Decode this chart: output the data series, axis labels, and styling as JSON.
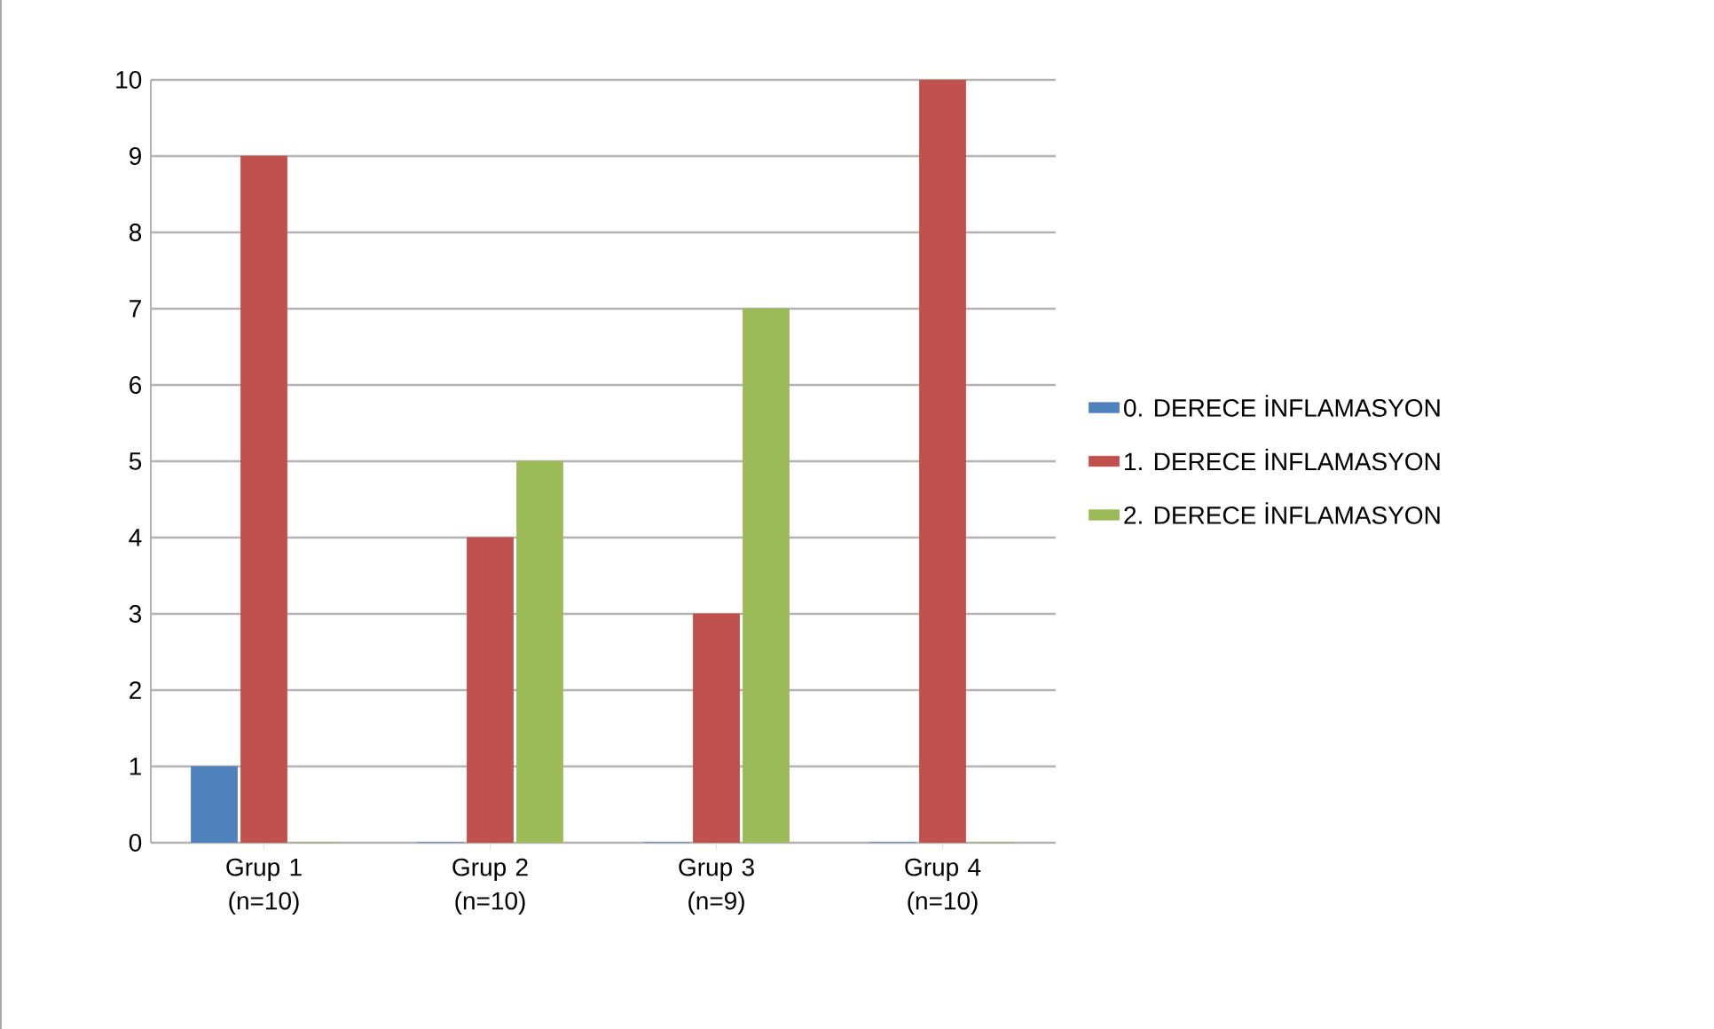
{
  "chart_data": {
    "type": "bar",
    "categories": [
      "Grup 1 (n=10)",
      "Grup 2 (n=10)",
      "Grup 3 (n=9)",
      "Grup 4 (n=10)"
    ],
    "series": [
      {
        "name": "0. DERECE İNFLAMASYON",
        "color": "#4f81bd",
        "values": [
          1,
          0,
          0,
          0
        ]
      },
      {
        "name": "1. DERECE İNFLAMASYON",
        "color": "#c0504d",
        "values": [
          9,
          4,
          3,
          10
        ]
      },
      {
        "name": "2. DERECE İNFLAMASYON",
        "color": "#9bbb59",
        "values": [
          0,
          5,
          7,
          0
        ]
      }
    ],
    "ylim": [
      0,
      10
    ],
    "yticks": [
      0,
      1,
      2,
      3,
      4,
      5,
      6,
      7,
      8,
      9,
      10
    ],
    "grid": "y",
    "legend": "right"
  }
}
